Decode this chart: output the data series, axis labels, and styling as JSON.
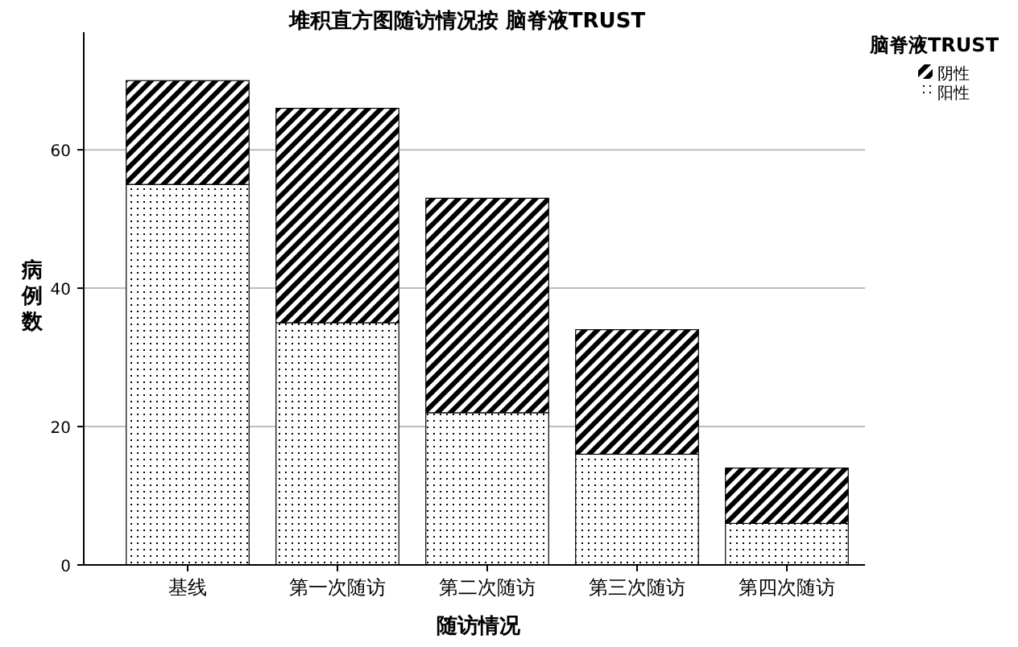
{
  "chart_data": {
    "type": "bar",
    "stacked": true,
    "title": "堆积直方图随访情况按 脑脊液TRUST",
    "xlabel": "随访情况",
    "ylabel": "病例数",
    "legend_title": "脑脊液TRUST",
    "categories": [
      "基线",
      "第一次随访",
      "第二次随访",
      "第三次随访",
      "第四次随访"
    ],
    "series": [
      {
        "name": "阳性",
        "color": "#000000",
        "values": [
          55,
          35,
          22,
          16,
          6
        ]
      },
      {
        "name": "阴性",
        "color": "#000000",
        "values": [
          15,
          31,
          31,
          18,
          8
        ]
      }
    ],
    "ylim": [
      0,
      77
    ],
    "yticks": [
      0,
      20,
      40,
      60
    ],
    "grid": "y",
    "legend": "top right"
  }
}
